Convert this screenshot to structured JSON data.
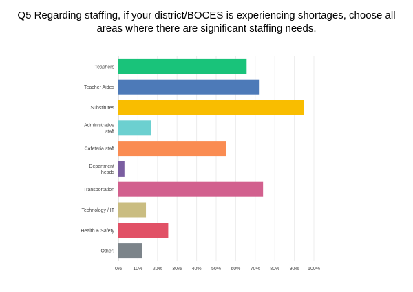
{
  "title": "Q5 Regarding staffing, if your district/BOCES is experiencing shortages, choose all areas where there are significant staffing needs.",
  "chart_data": {
    "type": "bar",
    "orientation": "horizontal",
    "categories": [
      [
        "Teachers"
      ],
      [
        "Teacher Aides"
      ],
      [
        "Substitutes"
      ],
      [
        "Administrative",
        "staff"
      ],
      [
        "Cafeteria staff"
      ],
      [
        "Department",
        "heads"
      ],
      [
        "Transportation"
      ],
      [
        "Technology / IT"
      ],
      [
        "Health & Safety"
      ],
      [
        "Other:"
      ]
    ],
    "values": [
      65.6,
      71.9,
      94.8,
      16.7,
      55.2,
      3.1,
      74.0,
      14.1,
      25.5,
      12.0
    ],
    "colors": [
      "#19c37a",
      "#4d7ab8",
      "#f9bd00",
      "#6cd0d0",
      "#fa8c52",
      "#7b5ea1",
      "#d2608e",
      "#cabd81",
      "#e15166",
      "#7c848a"
    ],
    "xlim": [
      0,
      100
    ],
    "x_ticks": [
      "0%",
      "10%",
      "20%",
      "30%",
      "40%",
      "50%",
      "60%",
      "70%",
      "80%",
      "90%",
      "100%"
    ],
    "grid": true,
    "xlabel": "",
    "ylabel": ""
  }
}
